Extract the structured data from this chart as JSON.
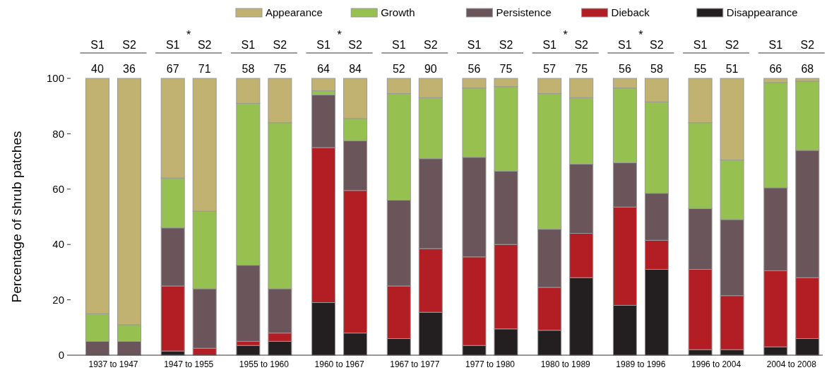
{
  "chart_data": {
    "type": "bar",
    "stacked": true,
    "ylabel": "Percentage of shrub patches",
    "legend": "top",
    "categories": [
      "S1",
      "S2",
      "S1",
      "S2",
      "S1",
      "S2",
      "S1",
      "S2",
      "S1",
      "S2",
      "S1",
      "S2",
      "S1",
      "S2",
      "S1",
      "S2",
      "S1",
      "S2",
      "S1",
      "S2"
    ],
    "ylim": [
      0,
      100
    ],
    "yticks": [
      0,
      20,
      40,
      60,
      80,
      100
    ],
    "series": [
      {
        "name": "Disappearance",
        "color": "#231f20",
        "values": [
          0,
          0,
          1.5,
          0,
          3.5,
          5,
          19,
          8,
          6,
          15.5,
          3.5,
          9.5,
          9,
          28,
          18,
          31,
          2,
          2,
          3,
          6
        ]
      },
      {
        "name": "Dieback",
        "color": "#b31e24",
        "values": [
          0,
          0,
          23.5,
          2.5,
          1.5,
          3,
          56,
          51.5,
          19,
          23,
          32,
          30.5,
          15.5,
          16,
          35.5,
          10.5,
          29,
          19.5,
          27.5,
          22
        ]
      },
      {
        "name": "Persistence",
        "color": "#6a555b",
        "values": [
          5,
          5,
          21,
          21.5,
          27.5,
          16,
          19,
          18,
          31,
          32.5,
          36,
          26.5,
          21,
          25,
          16,
          17,
          22,
          27.5,
          30,
          46
        ]
      },
      {
        "name": "Growth",
        "color": "#96c150",
        "values": [
          10,
          6,
          18,
          28,
          58.5,
          60,
          1.5,
          8,
          38.5,
          22,
          25,
          30.5,
          49,
          24,
          27,
          33,
          31,
          21.5,
          38,
          25
        ]
      },
      {
        "name": "Appearance",
        "color": "#c2b272",
        "values": [
          85,
          89,
          36,
          48,
          9,
          16,
          4.5,
          14.5,
          5.5,
          7,
          3.5,
          3,
          5.5,
          7,
          3.5,
          8.5,
          16,
          29.5,
          1.5,
          1
        ]
      }
    ],
    "annotations": [
      "1937 to 1947",
      "1947 to 1955",
      "1955 to 1960",
      "1960 to 1967",
      "1967 to 1977",
      "1977 to 1980",
      "1980 to 1989",
      "1989 to 1996",
      "1996 to 2004",
      "2004 to 2008",
      "40",
      "36",
      "67",
      "71",
      "58",
      "75",
      "64",
      "84",
      "52",
      "90",
      "56",
      "75",
      "57",
      "75",
      "56",
      "58",
      "55",
      "51",
      "66",
      "68",
      "*",
      "*",
      "*",
      "*"
    ]
  }
}
